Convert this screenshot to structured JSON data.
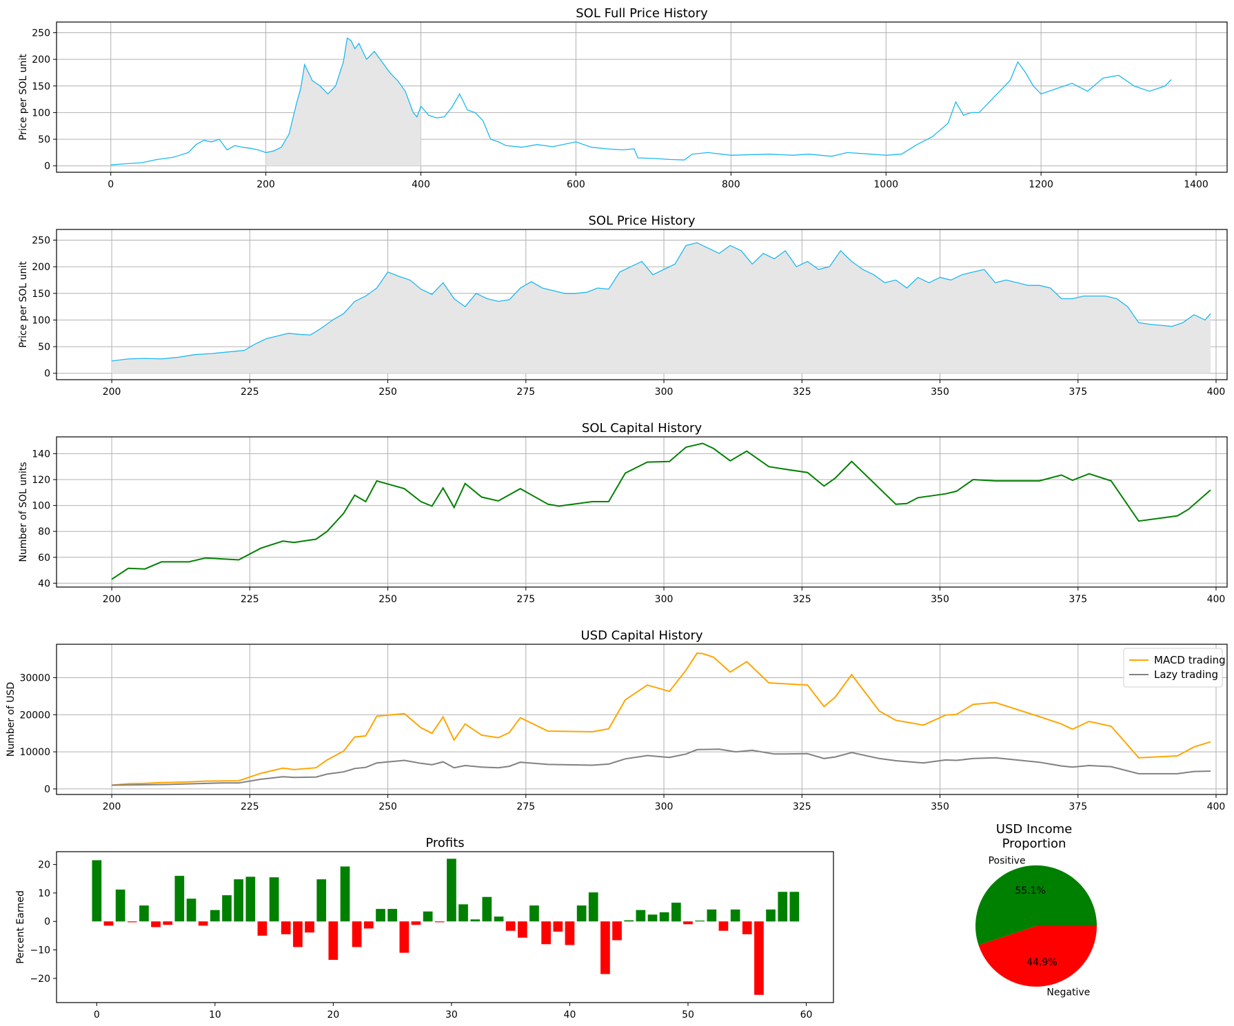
{
  "colors": {
    "price_line": "#1ab8f0",
    "area_fill": "#e6e6e6",
    "sol_capital": "#008000",
    "macd": "#ffa500",
    "lazy": "#808080",
    "positive": "#008000",
    "negative": "#ff0000",
    "grid": "#b0b0b0"
  },
  "chart_data": [
    {
      "type": "area",
      "title": "SOL Full Price History",
      "xlabel": "",
      "ylabel": "Price per SOL unit",
      "xlim": [
        -70,
        1440
      ],
      "ylim": [
        -12,
        270
      ],
      "xticks": [
        0,
        200,
        400,
        600,
        800,
        1000,
        1200,
        1400
      ],
      "yticks": [
        0,
        50,
        100,
        150,
        200,
        250
      ],
      "shaded_range": [
        200,
        400
      ],
      "grid": true,
      "x": [
        0,
        20,
        40,
        60,
        80,
        100,
        110,
        120,
        130,
        140,
        150,
        160,
        170,
        180,
        190,
        200,
        210,
        220,
        230,
        240,
        245,
        250,
        255,
        260,
        265,
        270,
        280,
        290,
        300,
        305,
        310,
        315,
        320,
        330,
        340,
        350,
        360,
        370,
        380,
        390,
        395,
        400,
        410,
        420,
        430,
        440,
        450,
        455,
        460,
        470,
        480,
        490,
        500,
        510,
        530,
        550,
        570,
        600,
        620,
        640,
        660,
        675,
        680,
        700,
        720,
        740,
        750,
        770,
        800,
        850,
        880,
        900,
        930,
        950,
        980,
        1000,
        1020,
        1040,
        1060,
        1080,
        1090,
        1100,
        1110,
        1120,
        1140,
        1160,
        1170,
        1180,
        1190,
        1200,
        1220,
        1240,
        1260,
        1280,
        1300,
        1320,
        1340,
        1360,
        1368
      ],
      "y": [
        2,
        4,
        6,
        12,
        16,
        25,
        40,
        48,
        45,
        50,
        30,
        38,
        35,
        33,
        30,
        25,
        28,
        35,
        60,
        120,
        145,
        190,
        175,
        160,
        155,
        150,
        135,
        150,
        195,
        240,
        235,
        220,
        230,
        200,
        215,
        195,
        175,
        160,
        140,
        100,
        92,
        112,
        95,
        90,
        92,
        110,
        135,
        120,
        105,
        100,
        85,
        50,
        45,
        38,
        35,
        40,
        36,
        45,
        35,
        32,
        30,
        32,
        15,
        14,
        12,
        11,
        22,
        25,
        20,
        22,
        20,
        22,
        18,
        25,
        22,
        20,
        22,
        40,
        55,
        80,
        120,
        95,
        100,
        100,
        130,
        160,
        195,
        175,
        150,
        135,
        145,
        155,
        140,
        165,
        170,
        150,
        140,
        150,
        162
      ]
    },
    {
      "type": "area",
      "title": "SOL Price History",
      "xlabel": "",
      "ylabel": "Price per SOL unit",
      "xlim": [
        190,
        402
      ],
      "ylim": [
        -12,
        270
      ],
      "xticks": [
        200,
        225,
        250,
        275,
        300,
        325,
        350,
        375,
        400
      ],
      "yticks": [
        0,
        50,
        100,
        150,
        200,
        250
      ],
      "grid": true,
      "x": [
        200,
        203,
        206,
        209,
        212,
        215,
        218,
        221,
        224,
        226,
        228,
        230,
        232,
        234,
        236,
        238,
        240,
        242,
        244,
        246,
        248,
        250,
        252,
        254,
        256,
        258,
        260,
        262,
        264,
        266,
        268,
        270,
        272,
        274,
        276,
        278,
        280,
        282,
        284,
        286,
        288,
        290,
        292,
        294,
        296,
        298,
        300,
        302,
        304,
        306,
        308,
        310,
        312,
        314,
        316,
        318,
        320,
        322,
        324,
        326,
        328,
        330,
        332,
        334,
        336,
        338,
        340,
        342,
        344,
        346,
        348,
        350,
        352,
        354,
        356,
        358,
        360,
        362,
        364,
        366,
        368,
        370,
        372,
        374,
        376,
        378,
        380,
        382,
        384,
        386,
        388,
        390,
        392,
        394,
        396,
        398,
        399
      ],
      "y": [
        23,
        27,
        28,
        27,
        30,
        35,
        37,
        40,
        43,
        55,
        65,
        70,
        75,
        73,
        72,
        85,
        100,
        112,
        135,
        145,
        160,
        190,
        182,
        175,
        158,
        148,
        170,
        140,
        125,
        150,
        140,
        135,
        138,
        160,
        172,
        160,
        155,
        150,
        150,
        152,
        160,
        158,
        190,
        200,
        210,
        185,
        195,
        205,
        240,
        245,
        235,
        225,
        240,
        230,
        205,
        225,
        215,
        230,
        200,
        210,
        195,
        200,
        230,
        210,
        195,
        185,
        170,
        175,
        160,
        180,
        170,
        180,
        175,
        185,
        190,
        195,
        170,
        175,
        170,
        165,
        165,
        160,
        140,
        140,
        145,
        145,
        145,
        140,
        125,
        95,
        92,
        90,
        88,
        95,
        110,
        100,
        112
      ]
    },
    {
      "type": "line",
      "title": "SOL Capital History",
      "xlabel": "",
      "ylabel": "Number of SOL units",
      "xlim": [
        190,
        402
      ],
      "ylim": [
        37,
        153
      ],
      "xticks": [
        200,
        225,
        250,
        275,
        300,
        325,
        350,
        375,
        400
      ],
      "yticks": [
        40,
        60,
        80,
        100,
        120,
        140
      ],
      "grid": true,
      "x": [
        200,
        203,
        206,
        209,
        214,
        217,
        223,
        227,
        231,
        233,
        237,
        239,
        242,
        244,
        246,
        248,
        253,
        256,
        258,
        260,
        262,
        264,
        267,
        270,
        274,
        279,
        281,
        287,
        290,
        293,
        297,
        301,
        304,
        306,
        307,
        309,
        312,
        315,
        319,
        322,
        326,
        329,
        331,
        334,
        342,
        344,
        346,
        351,
        353,
        356,
        360,
        363,
        368,
        372,
        374,
        377,
        381,
        386,
        393,
        395,
        399
      ],
      "y": [
        43,
        51.5,
        51,
        56.5,
        56.5,
        59.5,
        58,
        67,
        72.5,
        71.5,
        74,
        80,
        94,
        108,
        103,
        119,
        113,
        103,
        99.5,
        113.5,
        98.5,
        117,
        106.5,
        103.5,
        113,
        101,
        99.5,
        103,
        103,
        125,
        133.5,
        134,
        145,
        147,
        148,
        144,
        134.5,
        142,
        130,
        128,
        125.5,
        115,
        121,
        134,
        101,
        101.5,
        106,
        109,
        111,
        120,
        119,
        119,
        119,
        123.5,
        119.5,
        124.5,
        119,
        88,
        92,
        97,
        112
      ]
    },
    {
      "type": "line",
      "title": "USD Capital History",
      "xlabel": "",
      "ylabel": "Number of USD",
      "xlim": [
        190,
        402
      ],
      "ylim": [
        -1500,
        39000
      ],
      "xticks": [
        200,
        225,
        250,
        275,
        300,
        325,
        350,
        375,
        400
      ],
      "yticks": [
        0,
        10000,
        20000,
        30000
      ],
      "ytick_labels": [
        "0",
        "10000",
        "20000",
        "30000"
      ],
      "grid": true,
      "legend": "top-right",
      "series": [
        {
          "name": "MACD trading",
          "x": [
            200,
            203,
            206,
            209,
            214,
            217,
            223,
            227,
            231,
            233,
            237,
            239,
            242,
            244,
            246,
            248,
            253,
            256,
            258,
            260,
            262,
            264,
            267,
            270,
            272,
            274,
            279,
            287,
            290,
            293,
            297,
            301,
            304,
            306,
            307,
            309,
            312,
            315,
            319,
            326,
            329,
            331,
            334,
            339,
            342,
            347,
            351,
            353,
            356,
            360,
            368,
            372,
            374,
            377,
            381,
            386,
            393,
            396,
            399
          ],
          "y": [
            1000,
            1400,
            1500,
            1700,
            1900,
            2100,
            2200,
            4200,
            5600,
            5200,
            5700,
            7800,
            10200,
            14000,
            14300,
            19600,
            20300,
            16500,
            15000,
            19400,
            13200,
            17500,
            14500,
            13800,
            15200,
            19200,
            15600,
            15400,
            16200,
            24000,
            28000,
            26300,
            32000,
            36600,
            36500,
            35500,
            31500,
            34300,
            28600,
            28000,
            22200,
            24700,
            30800,
            21000,
            18500,
            17200,
            19900,
            20100,
            22800,
            23300,
            19500,
            17500,
            16100,
            18200,
            16900,
            8400,
            8900,
            11300,
            12700
          ]
        },
        {
          "name": "Lazy trading",
          "x": [
            200,
            205,
            210,
            215,
            220,
            223,
            227,
            231,
            233,
            237,
            239,
            242,
            244,
            246,
            248,
            253,
            256,
            258,
            260,
            262,
            264,
            267,
            270,
            272,
            274,
            279,
            287,
            290,
            293,
            297,
            301,
            304,
            306,
            310,
            313,
            316,
            320,
            326,
            329,
            331,
            334,
            339,
            342,
            347,
            351,
            353,
            356,
            360,
            368,
            372,
            374,
            377,
            381,
            386,
            393,
            396,
            399
          ],
          "y": [
            1000,
            1100,
            1200,
            1400,
            1600,
            1600,
            2600,
            3300,
            3100,
            3200,
            4000,
            4600,
            5500,
            5800,
            7000,
            7700,
            6900,
            6500,
            7300,
            5700,
            6300,
            5900,
            5700,
            6100,
            7200,
            6600,
            6400,
            6700,
            8100,
            9000,
            8500,
            9400,
            10600,
            10700,
            10000,
            10400,
            9400,
            9500,
            8200,
            8600,
            9800,
            8200,
            7600,
            7000,
            7800,
            7700,
            8200,
            8400,
            7200,
            6200,
            5900,
            6300,
            6000,
            4100,
            4100,
            4700,
            4800
          ]
        }
      ]
    },
    {
      "type": "bar",
      "title": "Profits",
      "xlabel": "",
      "ylabel": "Percent Earned",
      "xlim": [
        -3.4,
        62.3
      ],
      "ylim": [
        -28.5,
        24.5
      ],
      "xticks": [
        0,
        10,
        20,
        30,
        40,
        50,
        60
      ],
      "yticks": [
        -20,
        -10,
        0,
        10,
        20
      ],
      "ytick_labels": [
        "−20",
        "−10",
        "0",
        "10",
        "20"
      ],
      "grid": false,
      "categories": [
        0,
        1,
        2,
        3,
        4,
        5,
        6,
        7,
        8,
        9,
        10,
        11,
        12,
        13,
        14,
        15,
        16,
        17,
        18,
        19,
        20,
        21,
        22,
        23,
        24,
        25,
        26,
        27,
        28,
        29,
        30,
        31,
        32,
        33,
        34,
        35,
        36,
        37,
        38,
        39,
        40,
        41,
        42,
        43,
        44,
        45,
        46,
        47,
        48,
        49,
        50,
        51,
        52,
        53,
        54,
        55,
        56,
        57,
        58,
        59
      ],
      "values": [
        21.5,
        -1.5,
        11.2,
        -0.3,
        5.6,
        -2,
        -1.2,
        16,
        8,
        -1.5,
        4,
        9.2,
        14.8,
        15.7,
        -5,
        15.5,
        -4.5,
        -9,
        -3.9,
        14.8,
        -13.5,
        19.3,
        -9,
        -2.5,
        4.4,
        4.4,
        -11,
        -1.2,
        3.5,
        -0.3,
        22,
        6,
        0.7,
        8.6,
        1.7,
        -3.3,
        -5.7,
        5.6,
        -8,
        -3.6,
        -8.3,
        5.6,
        10.2,
        -18.5,
        -6.6,
        0.4,
        4,
        2.4,
        3.2,
        6.6,
        -1,
        0.3,
        4.2,
        -3.3,
        4.2,
        -4.5,
        -25.8,
        4.2,
        10.4,
        10.4
      ]
    },
    {
      "type": "pie",
      "title": "USD Income\nProportion",
      "labels": [
        "Positive",
        "Negative"
      ],
      "values": [
        55.1,
        44.9
      ],
      "autopct": [
        "55.1%",
        "44.9%"
      ],
      "colors": [
        "#008000",
        "#ff0000"
      ]
    }
  ]
}
